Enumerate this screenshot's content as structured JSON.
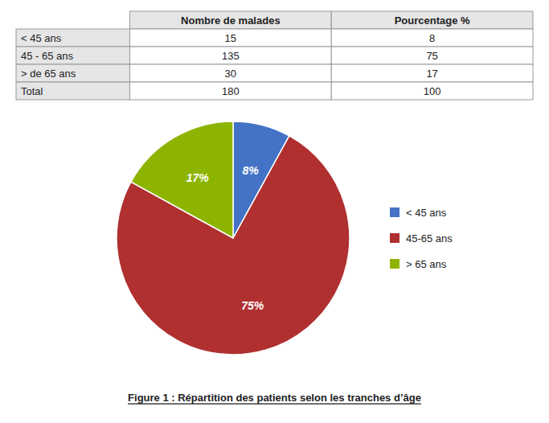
{
  "chart_data": [
    {
      "type": "table",
      "columns": [
        "Nombre de malades",
        "Pourcentage %"
      ],
      "rows": [
        "< 45 ans",
        "45 - 65 ans",
        "> de 65 ans",
        "Total"
      ],
      "cells": [
        [
          15,
          8
        ],
        [
          135,
          75
        ],
        [
          30,
          17
        ],
        [
          180,
          100
        ]
      ]
    },
    {
      "type": "pie",
      "title": "Figure 1 : Répartition des patients selon les tranches d’âge",
      "categories": [
        "< 45 ans",
        "45-65 ans",
        "> 65 ans"
      ],
      "values": [
        8,
        75,
        17
      ],
      "value_labels": [
        "8%",
        "75%",
        "17%"
      ],
      "colors": [
        "#4472c4",
        "#b03030",
        "#8db400"
      ],
      "data_labels": true,
      "legend": "right"
    }
  ]
}
